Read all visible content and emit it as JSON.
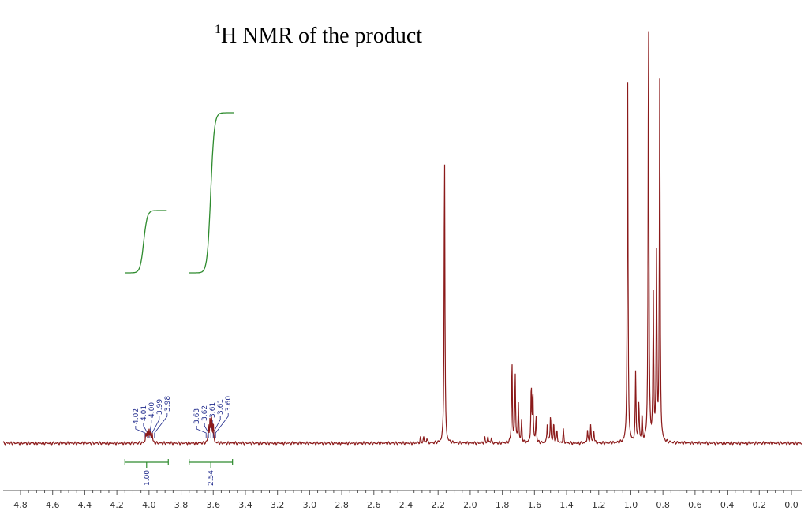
{
  "colors": {
    "spectrum": "#8b1a1a",
    "integral": "#2e8b2e",
    "peak_label": "#1f2a8c",
    "axis": "#555555"
  },
  "chart_data": {
    "type": "line",
    "title_superscript": "1",
    "title_main": "H NMR of the product",
    "xlabel": "",
    "ylabel": "",
    "x_reversed": true,
    "xlim": [
      4.85,
      -0.05
    ],
    "ylim": [
      0,
      100
    ],
    "x_ticks": [
      "4.8",
      "4.6",
      "4.4",
      "4.2",
      "4.0",
      "3.8",
      "3.6",
      "3.4",
      "3.2",
      "3.0",
      "2.8",
      "2.6",
      "2.4",
      "2.2",
      "2.0",
      "1.8",
      "1.6",
      "1.4",
      "1.2",
      "1.0",
      "0.8",
      "0.6",
      "0.4",
      "0.2",
      "0.0"
    ],
    "peaks": [
      {
        "ppm": 4.02,
        "height": 2.2
      },
      {
        "ppm": 4.01,
        "height": 2.6
      },
      {
        "ppm": 4.0,
        "height": 2.8
      },
      {
        "ppm": 3.99,
        "height": 2.6
      },
      {
        "ppm": 3.98,
        "height": 2.2
      },
      {
        "ppm": 3.63,
        "height": 4.0
      },
      {
        "ppm": 3.62,
        "height": 5.5
      },
      {
        "ppm": 3.61,
        "height": 6.0
      },
      {
        "ppm": 3.6,
        "height": 4.2
      },
      {
        "ppm": 2.31,
        "height": 1.3
      },
      {
        "ppm": 2.29,
        "height": 1.5
      },
      {
        "ppm": 2.27,
        "height": 1.2
      },
      {
        "ppm": 2.16,
        "height": 68.0
      },
      {
        "ppm": 1.91,
        "height": 1.3
      },
      {
        "ppm": 1.89,
        "height": 1.6
      },
      {
        "ppm": 1.87,
        "height": 1.1
      },
      {
        "ppm": 1.74,
        "height": 19.0
      },
      {
        "ppm": 1.72,
        "height": 16.0
      },
      {
        "ppm": 1.7,
        "height": 9.0
      },
      {
        "ppm": 1.68,
        "height": 5.0
      },
      {
        "ppm": 1.62,
        "height": 13.0
      },
      {
        "ppm": 1.61,
        "height": 12.0
      },
      {
        "ppm": 1.59,
        "height": 6.0
      },
      {
        "ppm": 1.52,
        "height": 4.5
      },
      {
        "ppm": 1.5,
        "height": 6.5
      },
      {
        "ppm": 1.48,
        "height": 4.5
      },
      {
        "ppm": 1.46,
        "height": 3.0
      },
      {
        "ppm": 1.42,
        "height": 3.0
      },
      {
        "ppm": 1.27,
        "height": 3.0
      },
      {
        "ppm": 1.25,
        "height": 4.2
      },
      {
        "ppm": 1.23,
        "height": 3.0
      },
      {
        "ppm": 1.02,
        "height": 85.0
      },
      {
        "ppm": 0.97,
        "height": 16.0
      },
      {
        "ppm": 0.95,
        "height": 9.0
      },
      {
        "ppm": 0.93,
        "height": 6.0
      },
      {
        "ppm": 0.89,
        "height": 100.0
      },
      {
        "ppm": 0.86,
        "height": 33.0
      },
      {
        "ppm": 0.84,
        "height": 42.0
      },
      {
        "ppm": 0.82,
        "height": 84.0
      }
    ],
    "peak_labels": [
      {
        "group": "A",
        "values": [
          "4.02",
          "4.01",
          "4.00",
          "3.99",
          "3.98"
        ]
      },
      {
        "group": "B",
        "values": [
          "3.63",
          "3.62",
          "3.61",
          "3.61",
          "3.60"
        ]
      }
    ],
    "integrals": [
      {
        "from": 4.15,
        "to": 3.88,
        "value": "1.00"
      },
      {
        "from": 3.75,
        "to": 3.48,
        "value": "2.54"
      }
    ]
  }
}
